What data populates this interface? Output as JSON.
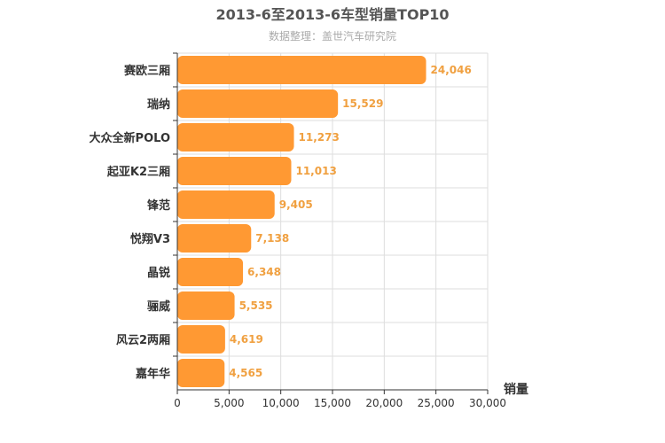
{
  "chart_data": {
    "type": "bar",
    "orientation": "horizontal",
    "title": "2013-6至2013-6车型销量TOP10",
    "subtitle": "数据整理：盖世汽车研究院",
    "xlabel": "销量",
    "ylabel": "",
    "categories": [
      "赛欧三厢",
      "瑞纳",
      "大众全新POLO",
      "起亚K2三厢",
      "锋范",
      "悦翔V3",
      "晶锐",
      "骊威",
      "风云2两厢",
      "嘉年华"
    ],
    "values": [
      24046,
      15529,
      11273,
      11013,
      9405,
      7138,
      6348,
      5535,
      4619,
      4565
    ],
    "value_labels": [
      "24,046",
      "15,529",
      "11,273",
      "11,013",
      "9,405",
      "7,138",
      "6,348",
      "5,535",
      "4,619",
      "4,565"
    ],
    "xlim": [
      0,
      30000
    ],
    "x_ticks": [
      0,
      5000,
      10000,
      15000,
      20000,
      25000,
      30000
    ],
    "x_tick_labels": [
      "0",
      "5,000",
      "10,000",
      "15,000",
      "20,000",
      "25,000",
      "30,000"
    ],
    "grid": true,
    "colors": {
      "bar": "#ff9933",
      "value_label": "#f0a040",
      "title": "#555555",
      "subtitle": "#aaaaaa",
      "grid": "#dddddd",
      "axis": "#333333"
    }
  }
}
